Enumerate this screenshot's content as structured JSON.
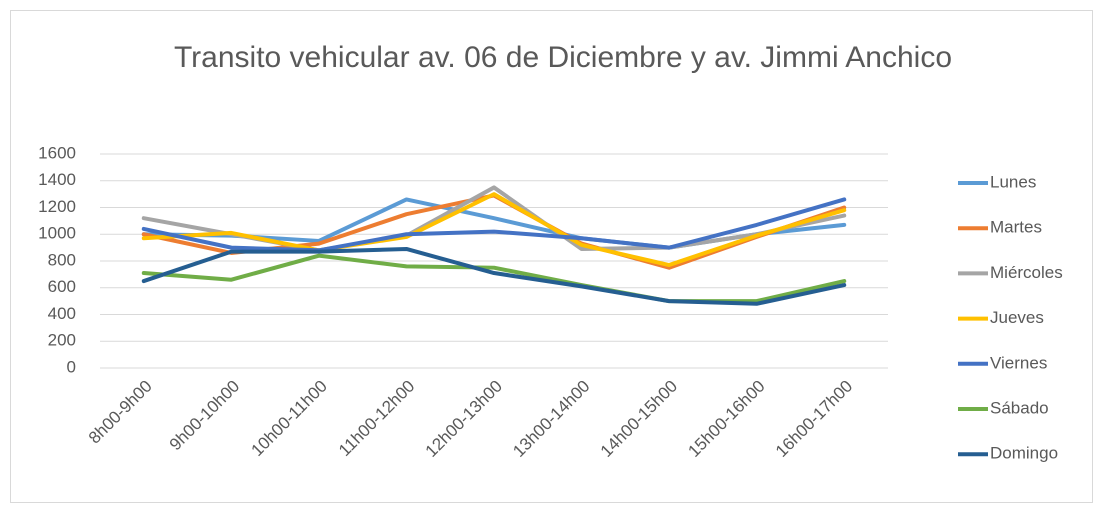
{
  "chart_data": {
    "type": "line",
    "title": "Transito vehicular av. 06 de Diciembre y av. Jimmi Anchico",
    "categories": [
      "8h00-9h00",
      "9h00-10h00",
      "10h00-11h00",
      "11h00-12h00",
      "12h00-13h00",
      "13h00-14h00",
      "14h00-15h00",
      "15h00-16h00",
      "16h00-17h00"
    ],
    "series": [
      {
        "name": "Lunes",
        "color": "#5b9bd5",
        "values": [
          1000,
          990,
          950,
          1260,
          1120,
          970,
          900,
          1000,
          1070
        ]
      },
      {
        "name": "Martes",
        "color": "#ed7d31",
        "values": [
          1000,
          860,
          930,
          1150,
          1290,
          930,
          750,
          980,
          1200
        ]
      },
      {
        "name": "Miércoles",
        "color": "#a5a5a5",
        "values": [
          1120,
          1000,
          880,
          990,
          1350,
          890,
          900,
          1000,
          1140
        ]
      },
      {
        "name": "Jueves",
        "color": "#ffc000",
        "values": [
          970,
          1010,
          880,
          980,
          1300,
          920,
          770,
          990,
          1180
        ]
      },
      {
        "name": "Viernes",
        "color": "#4472c4",
        "values": [
          1040,
          900,
          880,
          1000,
          1020,
          970,
          900,
          1070,
          1260
        ]
      },
      {
        "name": "Sábado",
        "color": "#70ad47",
        "values": [
          710,
          660,
          840,
          760,
          750,
          620,
          500,
          500,
          650
        ]
      },
      {
        "name": "Domingo",
        "color": "#255e91",
        "values": [
          650,
          870,
          870,
          890,
          710,
          610,
          500,
          480,
          620
        ]
      }
    ],
    "ylim": [
      0,
      1600
    ],
    "yticks": [
      0,
      200,
      400,
      600,
      800,
      1000,
      1200,
      1400,
      1600
    ],
    "grid": true,
    "legend": "right"
  }
}
